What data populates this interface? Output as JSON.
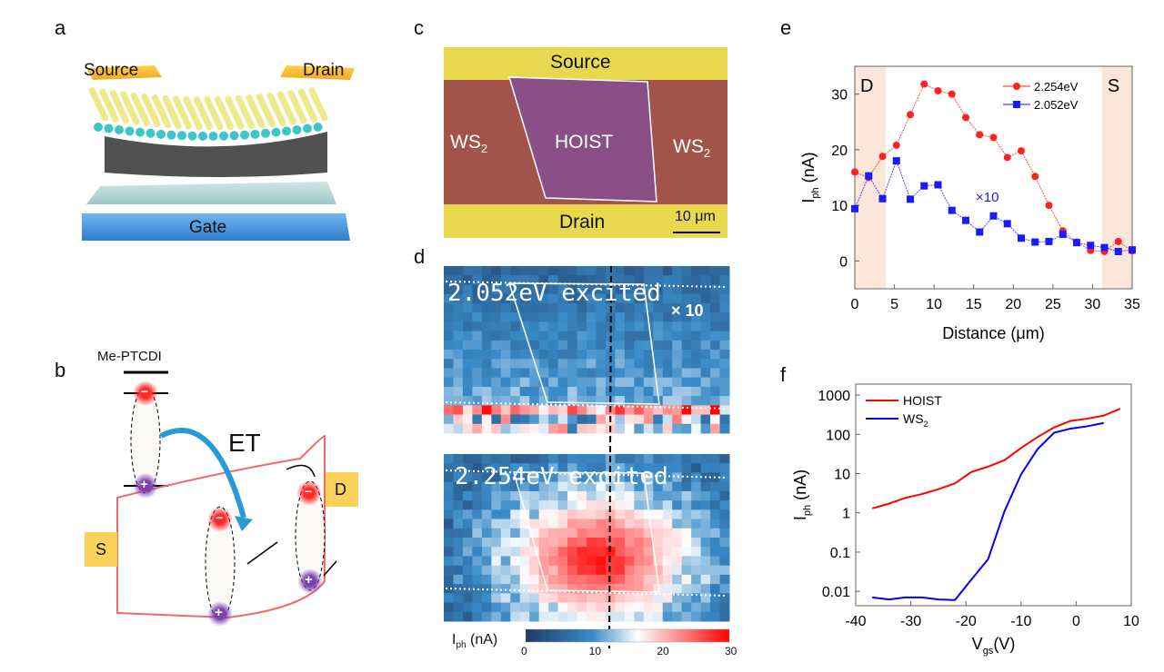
{
  "panels": {
    "a": {
      "label": "a",
      "source": "Source",
      "drain": "Drain",
      "gate": "Gate"
    },
    "b": {
      "label": "b",
      "molecule": "Me-PTCDI",
      "transfer": "ET",
      "source": "S",
      "drain": "D",
      "minus": "−",
      "plus": "+"
    },
    "c": {
      "label": "c",
      "source": "Source",
      "drain": "Drain",
      "ws2_left": "WS",
      "ws2_right": "WS",
      "sub": "2",
      "hoist": "HOIST",
      "scale": "10 μm"
    },
    "d": {
      "label": "d",
      "top_title": "2.052eV excited",
      "top_multiplier": "× 10",
      "bottom_title": "2.254eV excited",
      "colorbar": {
        "label": "I",
        "label_sub": "ph",
        "unit": " (nA)",
        "ticks": [
          "0",
          "10",
          "20",
          "30"
        ],
        "range": [
          0,
          30
        ],
        "colors": [
          "#1f3a66",
          "#3a8cc8",
          "#ffffff",
          "#ff0000"
        ]
      }
    },
    "e": {
      "label": "e"
    },
    "f": {
      "label": "f"
    }
  },
  "chart_data": [
    {
      "type": "line",
      "panel": "e",
      "xlabel": "Distance (μm)",
      "ylabel": "I",
      "ylabel_sub": "ph",
      "ylabel_unit": " (nA)",
      "xlim": [
        0,
        35
      ],
      "ylim": [
        -5,
        35
      ],
      "xticks": [
        "0",
        "5",
        "10",
        "15",
        "20",
        "25",
        "30",
        "35"
      ],
      "yticks": [
        "0",
        "10",
        "20",
        "30"
      ],
      "shaded_regions": [
        {
          "label": "D",
          "from": 0,
          "to": 3.9
        },
        {
          "label": "S",
          "from": 31.2,
          "to": 35
        }
      ],
      "annotation": "×10",
      "legend": "top-right",
      "x": [
        0,
        1.75,
        3.5,
        5.25,
        7,
        8.75,
        10.5,
        12.25,
        14,
        15.75,
        17.5,
        19.25,
        21,
        22.75,
        24.5,
        26.25,
        28,
        29.75,
        31.5,
        33.25,
        35
      ],
      "series": [
        {
          "name": "2.254eV",
          "color": "#ff2020",
          "marker": "circle",
          "values": [
            16,
            15,
            18.8,
            20.8,
            26.3,
            31.8,
            30.6,
            30,
            25.8,
            22.7,
            22.2,
            18.6,
            19.8,
            15.2,
            10,
            5.4,
            3.4,
            1.9,
            1.7,
            3.5,
            1.8
          ]
        },
        {
          "name": "2.052eV",
          "color": "#1a1aff",
          "marker": "square",
          "values": [
            9.4,
            15.3,
            11.2,
            18,
            11.1,
            13.5,
            13.7,
            9.1,
            7.3,
            5.2,
            8.1,
            6.7,
            4.1,
            3.4,
            3.5,
            4.8,
            3.3,
            2.8,
            2.4,
            1.7,
            2.0
          ]
        }
      ]
    },
    {
      "type": "line",
      "panel": "f",
      "xlabel": "V",
      "xlabel_sub": "gs",
      "xlabel_unit": "(V)",
      "ylabel": "I",
      "ylabel_sub": "ph",
      "ylabel_unit": " (nA)",
      "xlim": [
        -40,
        10
      ],
      "ylim": [
        0.0043,
        1900
      ],
      "yscale": "log",
      "xticks": [
        "-40",
        "-30",
        "-20",
        "-10",
        "0",
        "10"
      ],
      "yticks": [
        "0.01",
        "0.1",
        "1",
        "10",
        "100",
        "1000"
      ],
      "legend": "top-left",
      "series": [
        {
          "name": "HOIST",
          "color": "#ff0000",
          "x": [
            -37,
            -34,
            -31,
            -28,
            -25,
            -22,
            -19,
            -16,
            -13,
            -10,
            -7,
            -4,
            -1,
            2,
            5,
            8
          ],
          "values": [
            1.3,
            1.7,
            2.4,
            3,
            4,
            5.6,
            11,
            15,
            22,
            45,
            85,
            150,
            220,
            250,
            300,
            450
          ]
        },
        {
          "name": "WS",
          "name_sub": "2",
          "color": "#0000ff",
          "x": [
            -37,
            -34,
            -31,
            -28,
            -25,
            -22,
            -19,
            -16,
            -13,
            -10,
            -7,
            -4,
            -1,
            2,
            5
          ],
          "values": [
            0.007,
            0.0062,
            0.007,
            0.007,
            0.0062,
            0.006,
            0.02,
            0.065,
            1.1,
            9.5,
            42,
            110,
            140,
            160,
            195
          ]
        }
      ]
    }
  ]
}
